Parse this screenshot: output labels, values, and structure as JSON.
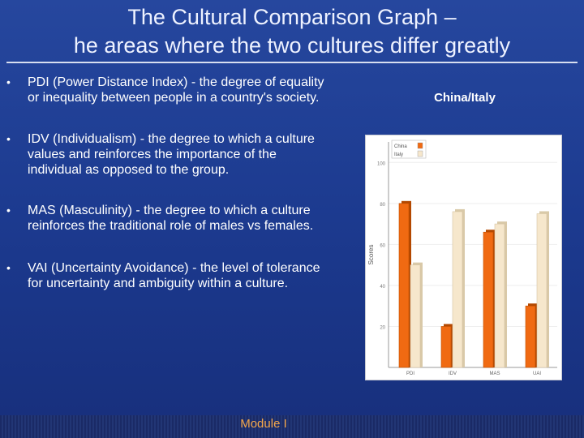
{
  "slide": {
    "title_line1": "The Cultural Comparison Graph –",
    "title_line2": "he areas where the two cultures differ greatly",
    "bullets": [
      "PDI (Power Distance Index) - the degree of equality or inequality between people in a country's society.",
      "IDV (Individualism) - the degree to which a culture values and reinforces the importance of the individual as opposed to the group.",
      "MAS (Masculinity) - the degree to which a culture reinforces the traditional role of males vs females.",
      "VAI (Uncertainty Avoidance) - the level of tolerance for uncertainty and ambiguity within a culture."
    ],
    "chart_heading": "China/Italy",
    "footer": "Module I"
  },
  "chart_data": {
    "type": "bar",
    "categories": [
      "PDI",
      "IDV",
      "MAS",
      "UAI"
    ],
    "series": [
      {
        "name": "China",
        "values": [
          80,
          20,
          66,
          30
        ]
      },
      {
        "name": "Italy",
        "values": [
          50,
          76,
          70,
          75
        ]
      }
    ],
    "ylabel": "Scores",
    "yticks": [
      20,
      40,
      60,
      80,
      100
    ],
    "ylim": [
      0,
      110
    ],
    "legend": "top-left",
    "colors": {
      "China": "#f06a12",
      "Italy": "#f6e7cc"
    }
  }
}
